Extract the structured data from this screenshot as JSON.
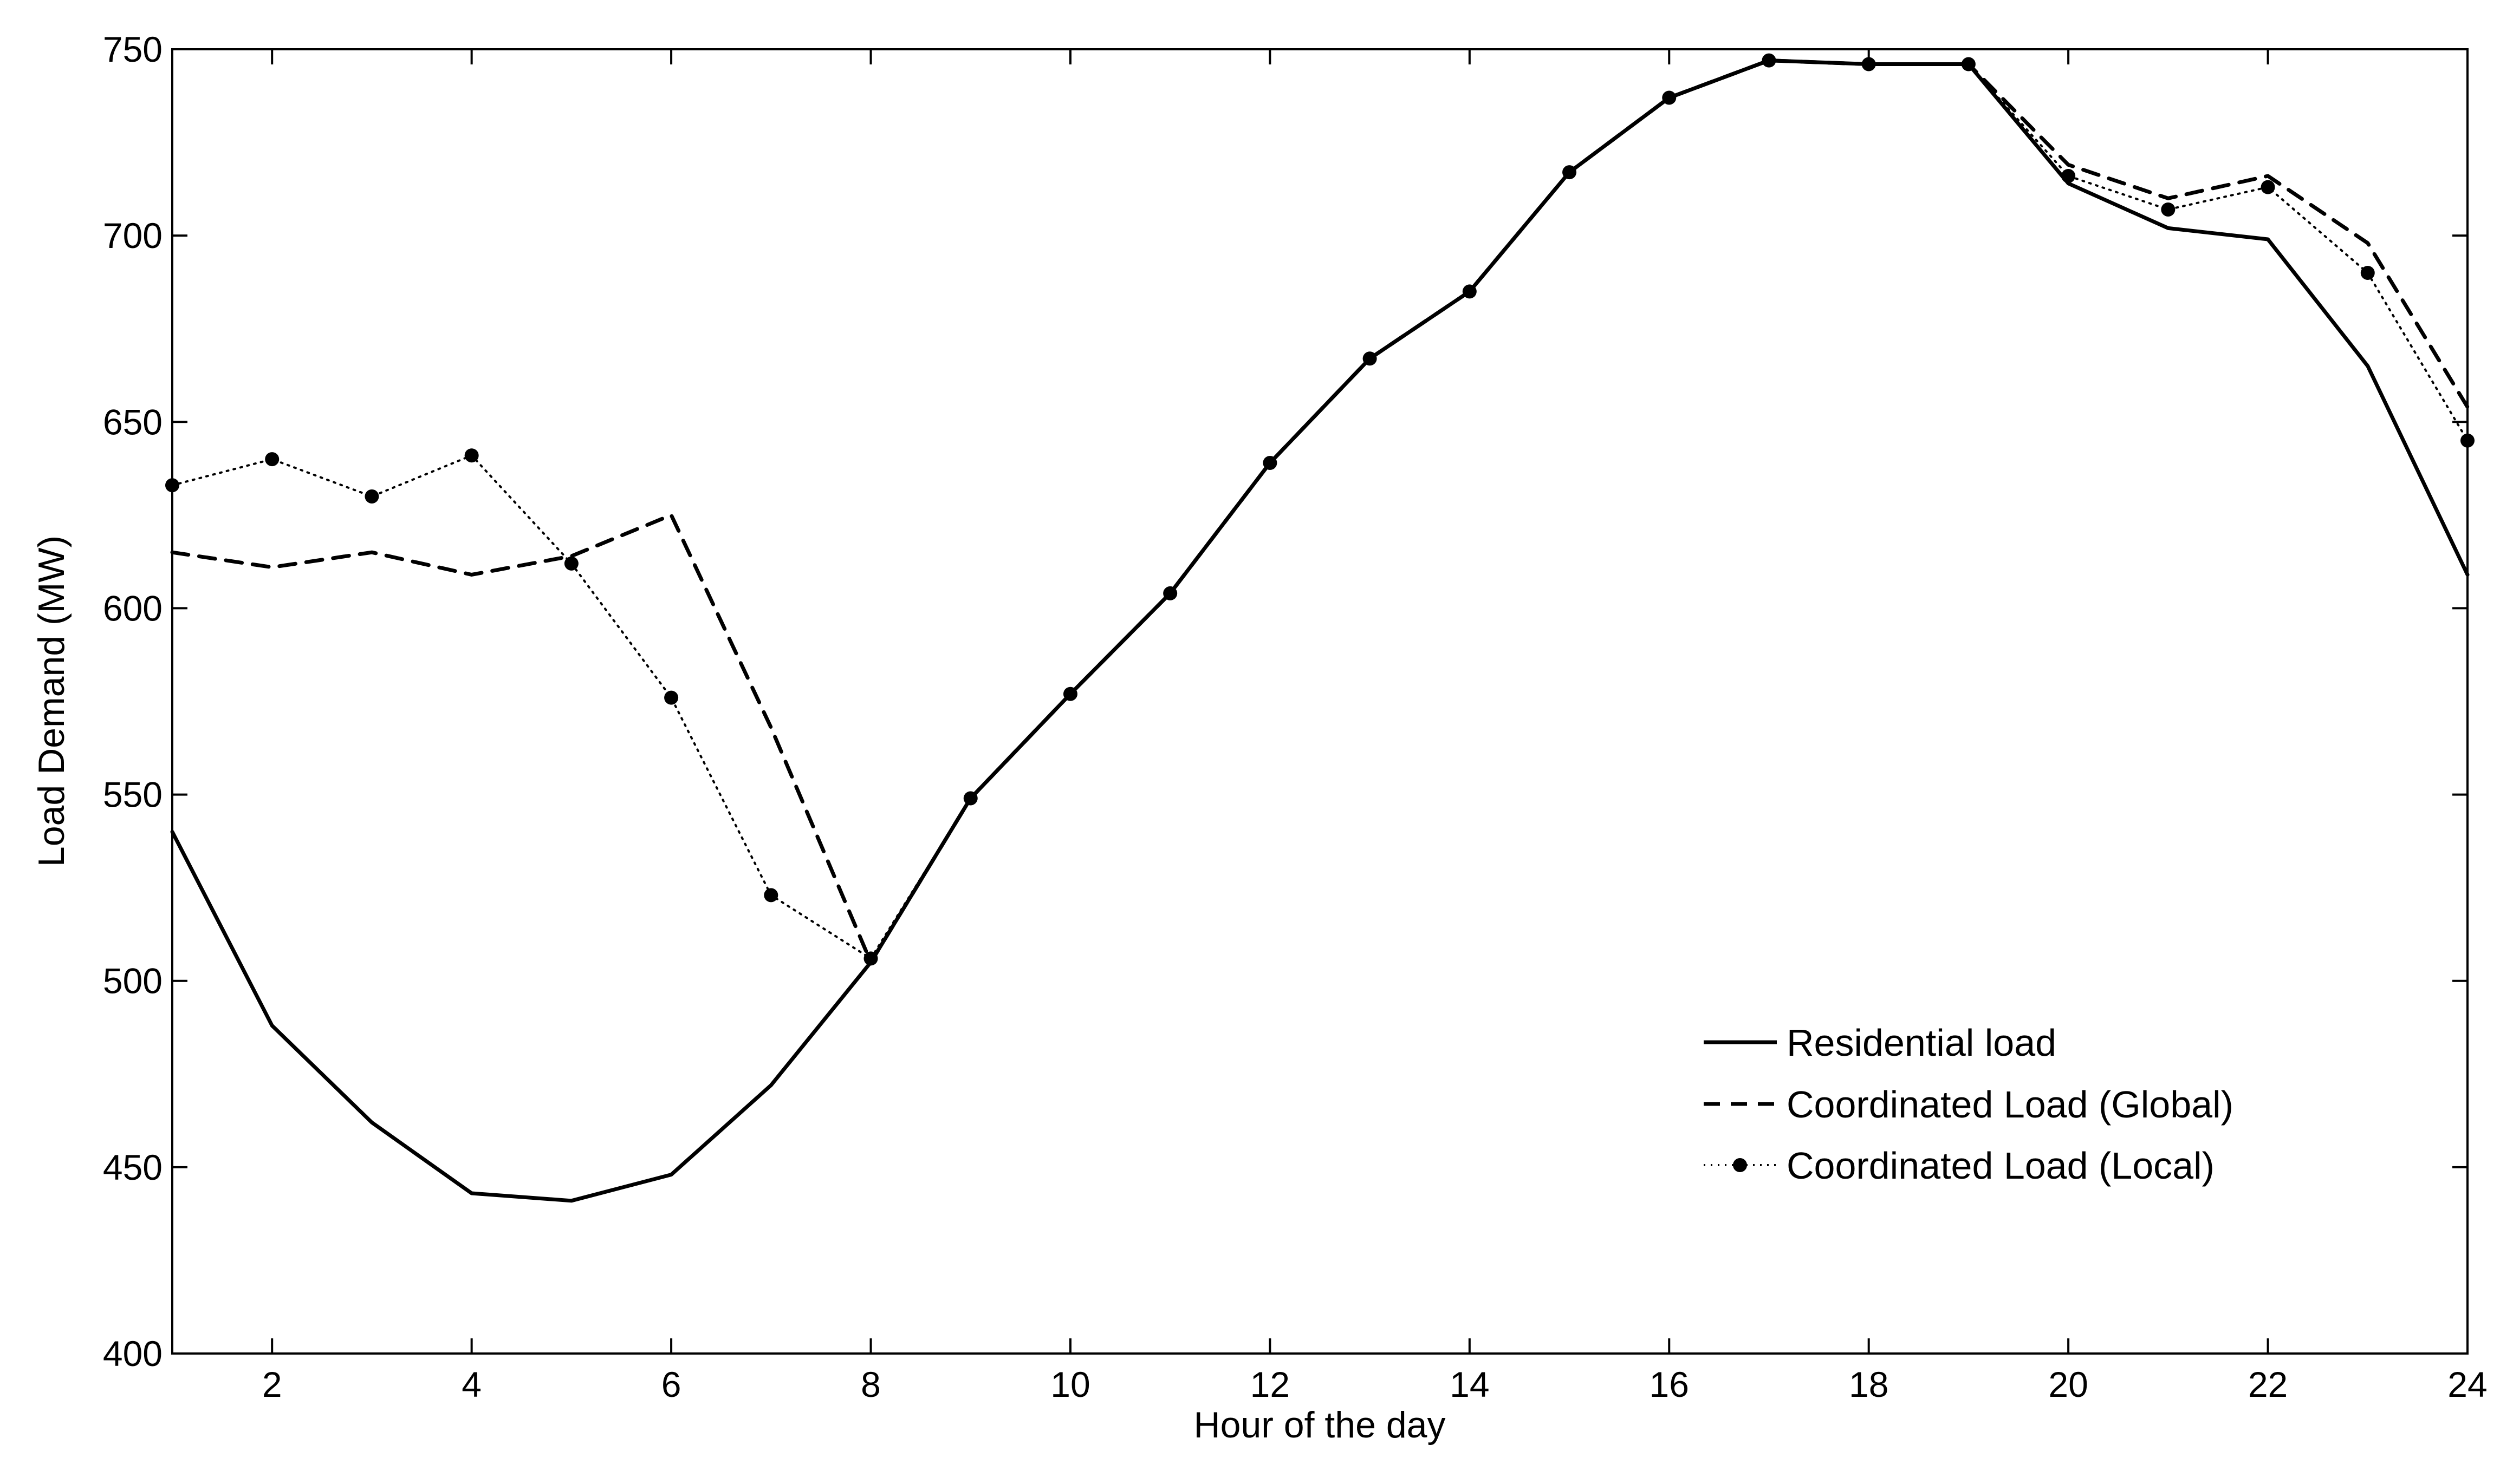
{
  "chart_data": {
    "type": "line",
    "title": "",
    "xlabel": "Hour of the day",
    "ylabel": "Load Demand (MW)",
    "xlim": [
      1,
      24
    ],
    "ylim": [
      400,
      750
    ],
    "x_ticks": [
      2,
      4,
      6,
      8,
      10,
      12,
      14,
      16,
      18,
      20,
      22,
      24
    ],
    "x_tick_labels": [
      "2",
      "4",
      "6",
      "8",
      "10",
      "12",
      "14",
      "16",
      "18",
      "20",
      "22",
      "24"
    ],
    "y_ticks": [
      400,
      450,
      500,
      550,
      600,
      650,
      700,
      750
    ],
    "y_tick_labels": [
      "400",
      "450",
      "500",
      "550",
      "600",
      "650",
      "700",
      "750"
    ],
    "grid": false,
    "legend_position": "lower-right",
    "x": [
      1,
      2,
      3,
      4,
      5,
      6,
      7,
      8,
      9,
      10,
      11,
      12,
      13,
      14,
      15,
      16,
      17,
      18,
      19,
      20,
      21,
      22,
      23,
      24
    ],
    "series": [
      {
        "name": "Residential load",
        "style": "solid",
        "color": "#000000",
        "values": [
          540,
          488,
          462,
          443,
          441,
          448,
          472,
          505,
          549,
          577,
          604,
          639,
          667,
          685,
          717,
          737,
          747,
          746,
          746,
          714,
          702,
          699,
          665,
          609
        ]
      },
      {
        "name": "Coordinated Load (Global)",
        "style": "dashed",
        "color": "#000000",
        "values": [
          615,
          611,
          615,
          609,
          614,
          625,
          568,
          505,
          549,
          577,
          604,
          639,
          667,
          685,
          717,
          737,
          747,
          746,
          746,
          719,
          710,
          716,
          698,
          654
        ]
      },
      {
        "name": "Coordinated Load (Local)",
        "style": "dotted-markers",
        "color": "#000000",
        "values": [
          633,
          640,
          630,
          641,
          612,
          576,
          523,
          506,
          549,
          577,
          604,
          639,
          667,
          685,
          717,
          737,
          747,
          746,
          746,
          716,
          707,
          713,
          690,
          645
        ]
      }
    ]
  }
}
